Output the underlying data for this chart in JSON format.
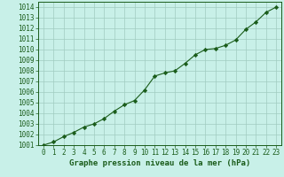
{
  "x": [
    0,
    1,
    2,
    3,
    4,
    5,
    6,
    7,
    8,
    9,
    10,
    11,
    12,
    13,
    14,
    15,
    16,
    17,
    18,
    19,
    20,
    21,
    22,
    23
  ],
  "y": [
    1001.0,
    1001.3,
    1001.8,
    1002.2,
    1002.7,
    1003.0,
    1003.5,
    1004.2,
    1004.8,
    1005.2,
    1006.2,
    1007.5,
    1007.8,
    1008.0,
    1008.7,
    1009.5,
    1010.0,
    1010.1,
    1010.4,
    1010.9,
    1011.9,
    1012.6,
    1013.5,
    1014.0
  ],
  "ylim": [
    1001,
    1014.5
  ],
  "yticks": [
    1001,
    1002,
    1003,
    1004,
    1005,
    1006,
    1007,
    1008,
    1009,
    1010,
    1011,
    1012,
    1013,
    1014
  ],
  "xticks": [
    0,
    1,
    2,
    3,
    4,
    5,
    6,
    7,
    8,
    9,
    10,
    11,
    12,
    13,
    14,
    15,
    16,
    17,
    18,
    19,
    20,
    21,
    22,
    23
  ],
  "xlabel": "Graphe pression niveau de la mer (hPa)",
  "line_color": "#1a5c1a",
  "marker": "D",
  "marker_size": 2.2,
  "background_color": "#c8f0e8",
  "grid_color": "#a0ccc0",
  "text_color": "#1a5c1a",
  "tick_fontsize": 5.5,
  "xlabel_fontsize": 6.5
}
